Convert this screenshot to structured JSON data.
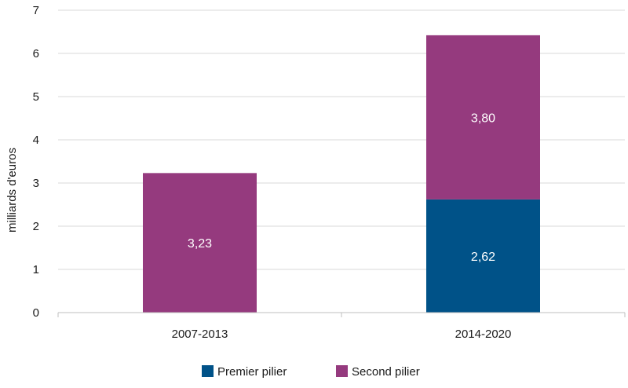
{
  "chart_data": {
    "type": "bar",
    "stacked": true,
    "categories": [
      "2007-2013",
      "2014-2020"
    ],
    "series": [
      {
        "name": "Premier pilier",
        "values": [
          0,
          2.62
        ],
        "labels": [
          "",
          "2,62"
        ],
        "color": "#005288"
      },
      {
        "name": "Second pilier",
        "values": [
          3.23,
          3.8
        ],
        "labels": [
          "3,23",
          "3,80"
        ],
        "color": "#953A7E"
      }
    ],
    "title": "",
    "xlabel": "",
    "ylabel": "milliards d'euros",
    "ylim": [
      0,
      7
    ],
    "yticks": [
      "0",
      "1",
      "2",
      "3",
      "4",
      "5",
      "6",
      "7"
    ],
    "grid": true,
    "legend": "bottom"
  }
}
